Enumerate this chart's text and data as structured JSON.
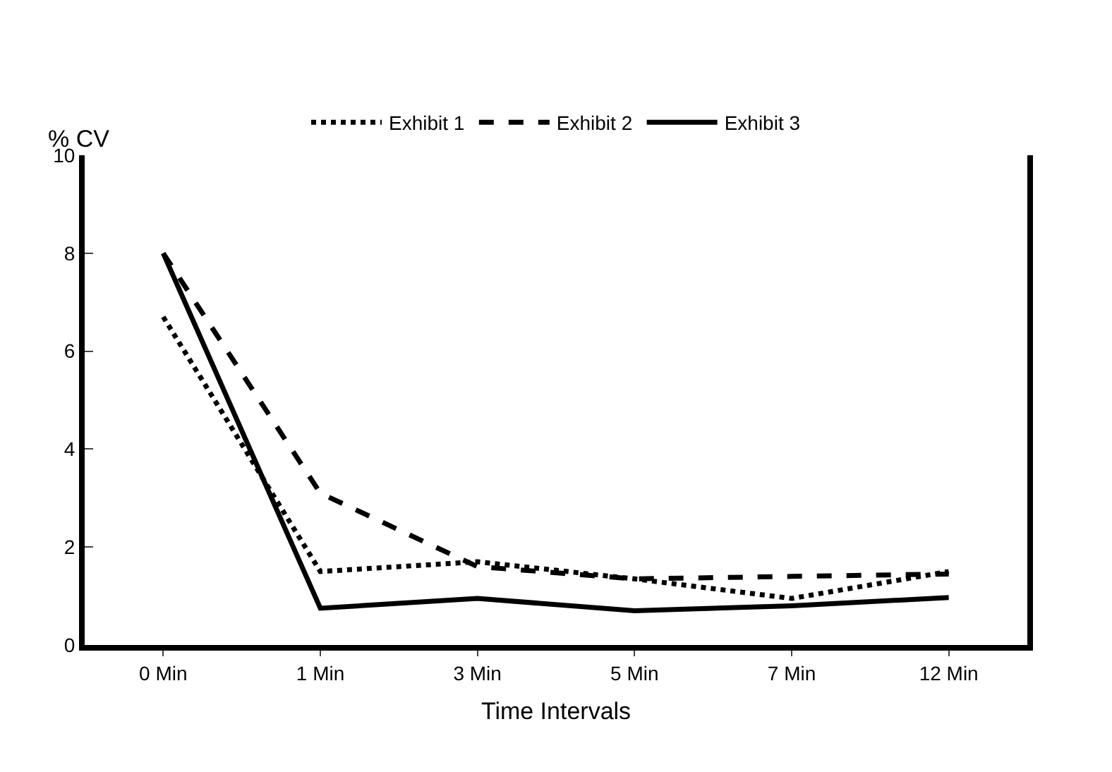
{
  "chart_data": {
    "type": "line",
    "ylabel": "% CV",
    "xlabel": "Time Intervals",
    "categories": [
      "0 Min",
      "1 Min",
      "3 Min",
      "5 Min",
      "7 Min",
      "12 Min"
    ],
    "series": [
      {
        "name": "Exhibit 1",
        "color": "#000000",
        "line_style": "dotted",
        "values": [
          6.7,
          1.5,
          1.7,
          1.35,
          0.95,
          1.5
        ]
      },
      {
        "name": "Exhibit 2",
        "color": "#000000",
        "line_style": "dashed",
        "values": [
          8.0,
          3.1,
          1.6,
          1.35,
          1.4,
          1.45
        ]
      },
      {
        "name": "Exhibit 3",
        "color": "#000000",
        "line_style": "solid",
        "values": [
          8.0,
          0.75,
          0.95,
          0.7,
          0.8,
          0.97
        ]
      }
    ],
    "ylim": [
      0,
      10
    ],
    "yticks": [
      0,
      2,
      4,
      6,
      8,
      10
    ],
    "legend": "top",
    "marker": "none"
  }
}
